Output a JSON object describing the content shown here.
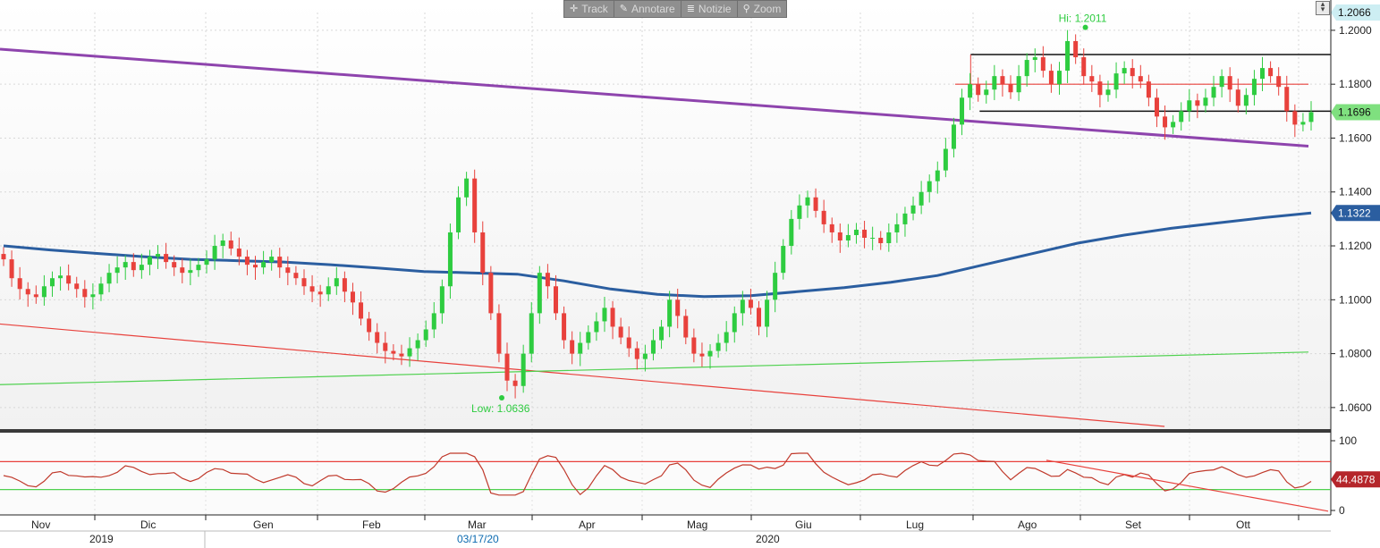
{
  "toolbar": {
    "track_label": "Track",
    "annotate_label": "Annotare",
    "news_label": "Notizie",
    "zoom_label": "Zoom",
    "icons": [
      "crosshair-icon",
      "pencil-icon",
      "news-icon",
      "magnifier-icon"
    ]
  },
  "chart_data": [
    {
      "type": "candlestick",
      "panel": "price",
      "y_ticks": [
        "1.2000",
        "1.1800",
        "1.1600",
        "1.1400",
        "1.1200",
        "1.1000",
        "1.0800",
        "1.0600"
      ],
      "ylim": [
        1.052,
        1.2066
      ],
      "x_months": [
        "Nov",
        "Dic",
        "Gen",
        "Feb",
        "Mar",
        "Apr",
        "Mag",
        "Giu",
        "Lug",
        "Ago",
        "Set",
        "Ott"
      ],
      "x_years": [
        "2019",
        "2020"
      ],
      "x_date_marker": "03/17/20",
      "high_annotation": {
        "label": "Hi: 1.2011",
        "value": 1.2011
      },
      "low_annotation": {
        "label": "Low: 1.0636",
        "value": 1.0636
      },
      "price_labels": [
        {
          "value": "1.2066",
          "color": "#cdeef3"
        },
        {
          "value": "1.1696",
          "color": "#7fe07f"
        },
        {
          "value": "1.1322",
          "color": "#2b5ea0"
        }
      ],
      "closes": [
        1.115,
        1.108,
        1.104,
        1.102,
        1.101,
        1.105,
        1.108,
        1.109,
        1.106,
        1.104,
        1.101,
        1.102,
        1.106,
        1.11,
        1.112,
        1.114,
        1.111,
        1.113,
        1.116,
        1.117,
        1.114,
        1.112,
        1.11,
        1.111,
        1.113,
        1.115,
        1.12,
        1.122,
        1.119,
        1.116,
        1.113,
        1.112,
        1.114,
        1.116,
        1.112,
        1.11,
        1.108,
        1.105,
        1.103,
        1.102,
        1.105,
        1.108,
        1.103,
        1.099,
        1.093,
        1.088,
        1.084,
        1.081,
        1.08,
        1.079,
        1.082,
        1.085,
        1.089,
        1.095,
        1.105,
        1.125,
        1.138,
        1.145,
        1.125,
        1.11,
        1.095,
        1.08,
        1.07,
        1.068,
        1.08,
        1.095,
        1.11,
        1.105,
        1.095,
        1.085,
        1.08,
        1.084,
        1.088,
        1.092,
        1.097,
        1.09,
        1.086,
        1.082,
        1.078,
        1.08,
        1.085,
        1.09,
        1.1,
        1.094,
        1.086,
        1.08,
        1.079,
        1.081,
        1.084,
        1.088,
        1.095,
        1.1,
        1.097,
        1.09,
        1.1,
        1.11,
        1.12,
        1.13,
        1.135,
        1.138,
        1.133,
        1.128,
        1.125,
        1.122,
        1.124,
        1.126,
        1.123,
        1.123,
        1.121,
        1.125,
        1.128,
        1.132,
        1.135,
        1.14,
        1.144,
        1.148,
        1.156,
        1.165,
        1.175,
        1.18,
        1.176,
        1.178,
        1.183,
        1.18,
        1.177,
        1.183,
        1.189,
        1.19,
        1.185,
        1.18,
        1.185,
        1.196,
        1.19,
        1.183,
        1.181,
        1.176,
        1.178,
        1.184,
        1.186,
        1.183,
        1.181,
        1.175,
        1.168,
        1.164,
        1.166,
        1.17,
        1.174,
        1.172,
        1.175,
        1.179,
        1.183,
        1.178,
        1.172,
        1.176,
        1.182,
        1.186,
        1.183,
        1.179,
        1.17,
        1.165,
        1.166,
        1.1696
      ],
      "ma_blue": {
        "start": 1.12,
        "end": 1.1322,
        "color": "#2b5ea0"
      },
      "trendlines": [
        {
          "name": "",
          "color": "#8e44ad",
          "from": [
            0,
            1.193
          ],
          "to": [
            1.0,
            1.157
          ]
        },
        {
          "name": "",
          "color": "#e8413c",
          "from": [
            0,
            1.091
          ],
          "to": [
            0.89,
            1.053
          ]
        },
        {
          "name": "",
          "color": "#4fd14f",
          "from": [
            0,
            1.0685
          ],
          "to": [
            1.0,
            1.0806
          ]
        },
        {
          "name": "",
          "color": "#e8413c",
          "from": [
            0.73,
            1.18
          ],
          "to": [
            1.0,
            1.18
          ]
        }
      ],
      "range_box": {
        "top": 1.191,
        "bottom": 1.17,
        "x_from": 0.735,
        "x_to": 1.0
      }
    },
    {
      "type": "line",
      "panel": "oscillator",
      "y_ticks": [
        "100",
        "0"
      ],
      "ylim": [
        0,
        100
      ],
      "current_value": "44.4878",
      "upper_level": 70,
      "lower_level": 30,
      "color": "#c0392b"
    }
  ]
}
